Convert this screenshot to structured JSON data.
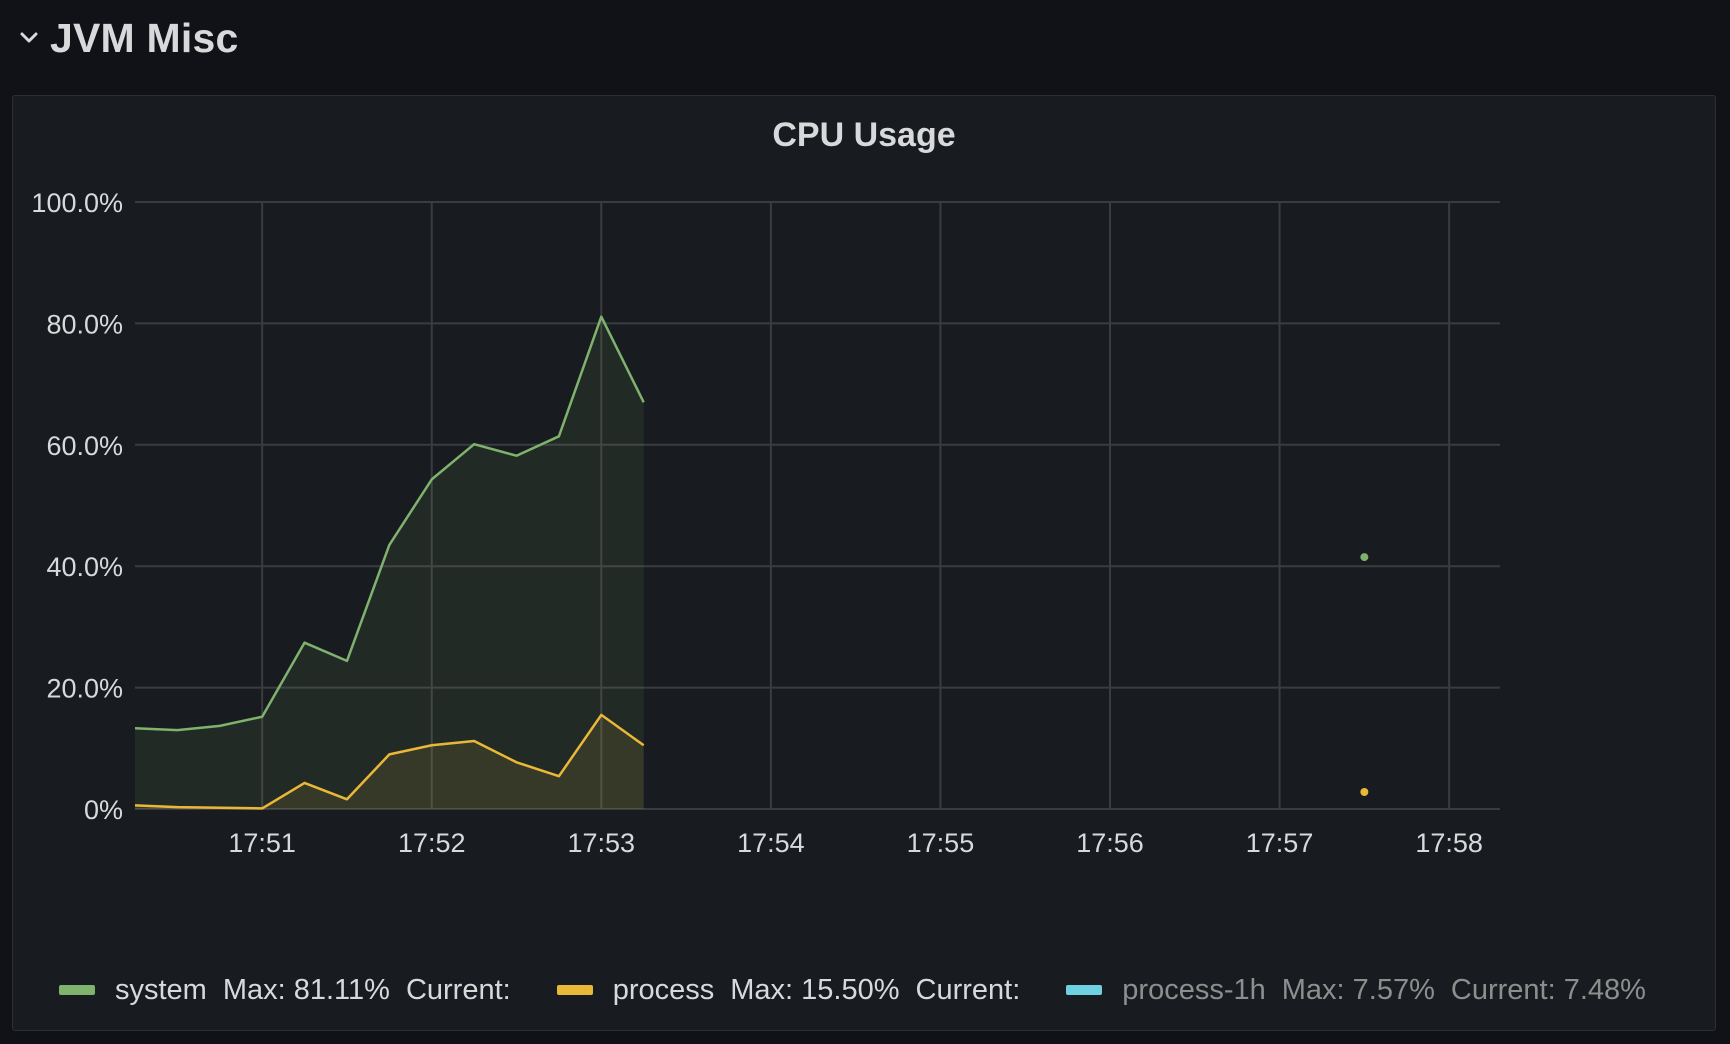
{
  "row": {
    "title": "JVM Misc",
    "collapse_icon": "chevron-down-icon"
  },
  "panel": {
    "title": "CPU Usage"
  },
  "colors": {
    "background": "#111217",
    "panel_bg": "#181b1f",
    "grid": "#3a3c40",
    "system": "#7eb26d",
    "process": "#eab839",
    "process_1h": "#6ed0e0"
  },
  "chart_data": {
    "type": "area",
    "title": "CPU Usage",
    "xlabel": "",
    "ylabel": "",
    "x_ticks": [
      "17:51",
      "17:52",
      "17:53",
      "17:54",
      "17:55",
      "17:56",
      "17:57",
      "17:58"
    ],
    "x_range": [
      "17:50:15",
      "17:58:18"
    ],
    "y_ticks": [
      "0%",
      "20.0%",
      "40.0%",
      "60.0%",
      "80.0%",
      "100.0%"
    ],
    "ylim": [
      0,
      100
    ],
    "grid": true,
    "legend_position": "bottom",
    "series": [
      {
        "name": "system",
        "color": "#7eb26d",
        "fill": true,
        "x": [
          "17:50:15",
          "17:50:30",
          "17:50:45",
          "17:51:00",
          "17:51:15",
          "17:51:30",
          "17:51:45",
          "17:52:00",
          "17:52:15",
          "17:52:30",
          "17:52:45",
          "17:53:00",
          "17:53:15"
        ],
        "values": [
          13.3,
          13.0,
          13.7,
          15.2,
          27.4,
          24.4,
          43.5,
          54.3,
          60.1,
          58.2,
          61.4,
          81.1,
          67.0
        ]
      },
      {
        "name": "process",
        "color": "#eab839",
        "fill": true,
        "x": [
          "17:50:15",
          "17:50:30",
          "17:50:45",
          "17:51:00",
          "17:51:15",
          "17:51:30",
          "17:51:45",
          "17:52:00",
          "17:52:15",
          "17:52:30",
          "17:52:45",
          "17:53:00",
          "17:53:15"
        ],
        "values": [
          0.6,
          0.3,
          0.2,
          0.1,
          4.3,
          1.6,
          9.0,
          10.5,
          11.2,
          7.7,
          5.4,
          15.5,
          10.5
        ]
      }
    ],
    "points": [
      {
        "series": "system",
        "x": "17:57:30",
        "y": 41.5
      },
      {
        "series": "process",
        "x": "17:57:30",
        "y": 2.8
      }
    ]
  },
  "legend": [
    {
      "name": "system",
      "max": "Max: 81.11%",
      "current": "Current:",
      "color": "#7eb26d",
      "hidden": false
    },
    {
      "name": "process",
      "max": "Max: 15.50%",
      "current": "Current:",
      "color": "#eab839",
      "hidden": false
    },
    {
      "name": "process-1h",
      "max": "Max: 7.57%",
      "current": "Current: 7.48%",
      "color": "#6ed0e0",
      "hidden": true
    }
  ]
}
